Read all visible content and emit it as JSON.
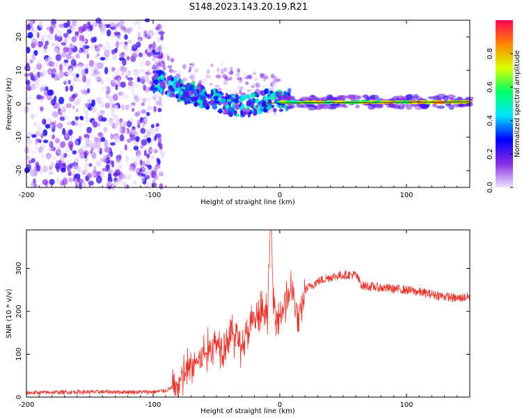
{
  "title": "S148.2023.143.20.19.R21",
  "chart_data": [
    {
      "type": "heatmap",
      "name": "spectrogram",
      "xlabel": "Height of straight line (km)",
      "ylabel": "Frequency (Hz)",
      "xlim": [
        -200,
        150
      ],
      "ylim": [
        -25,
        25
      ],
      "xticks": [
        -200,
        -100,
        0,
        100
      ],
      "yticks": [
        -20,
        -10,
        0,
        10,
        20
      ],
      "colorbar": {
        "label": "Normalized spectral amplitude",
        "range": [
          0.0,
          1.0
        ],
        "ticks": [
          0.0,
          0.2,
          0.4,
          0.6,
          0.8
        ],
        "stops": [
          "#ece4ff",
          "#8a2be2",
          "#0000ff",
          "#00e5ff",
          "#00ff66",
          "#d8ff00",
          "#ff8800",
          "#ff0055"
        ]
      },
      "regions": [
        {
          "desc": "noise",
          "x_range": [
            -200,
            -100
          ],
          "freq_range": [
            -25,
            25
          ],
          "amplitude": 0.15
        },
        {
          "desc": "descending echo",
          "points": [
            [
              -100,
              7
            ],
            [
              -90,
              6
            ],
            [
              -80,
              4
            ],
            [
              -70,
              3
            ],
            [
              -60,
              2
            ],
            [
              -50,
              1
            ],
            [
              -40,
              0
            ],
            [
              -30,
              -1
            ],
            [
              -20,
              0
            ],
            [
              -10,
              1
            ],
            [
              0,
              1
            ]
          ],
          "amplitude": 0.45
        },
        {
          "desc": "carrier",
          "x_range": [
            0,
            150
          ],
          "freq": 0.5,
          "amplitude": 0.85
        }
      ]
    },
    {
      "type": "line",
      "name": "snr",
      "xlabel": "Height of straight line (km)",
      "ylabel": "SNR (10 * v/v)",
      "xlim": [
        -200,
        150
      ],
      "ylim": [
        0,
        390
      ],
      "xticks": [
        -200,
        -100,
        0,
        100
      ],
      "yticks": [
        0,
        100,
        200,
        300
      ],
      "color": "#e8332a",
      "series": [
        {
          "name": "SNR",
          "x": [
            -200,
            -160,
            -120,
            -100,
            -90,
            -80,
            -75,
            -70,
            -65,
            -60,
            -55,
            -50,
            -45,
            -40,
            -35,
            -30,
            -25,
            -20,
            -15,
            -10,
            -7,
            -5,
            0,
            5,
            10,
            15,
            20,
            30,
            40,
            50,
            60,
            65,
            80,
            100,
            120,
            140,
            150
          ],
          "y": [
            10,
            12,
            12,
            12,
            15,
            30,
            55,
            70,
            85,
            100,
            110,
            130,
            120,
            140,
            150,
            120,
            150,
            180,
            190,
            200,
            390,
            210,
            190,
            230,
            250,
            170,
            250,
            270,
            280,
            285,
            285,
            260,
            255,
            250,
            240,
            230,
            235
          ]
        }
      ]
    }
  ]
}
